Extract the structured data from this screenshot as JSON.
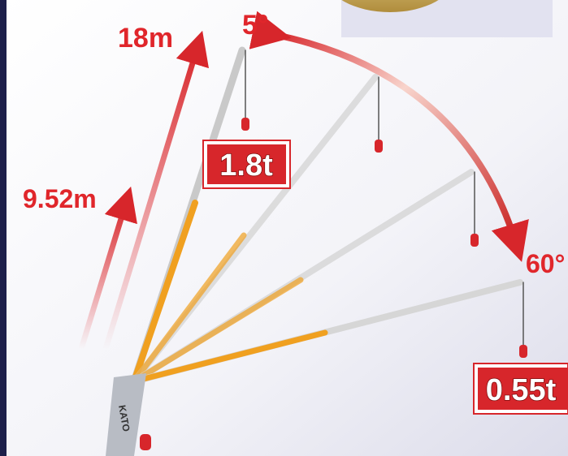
{
  "labels": {
    "boom_length_max": "18m",
    "angle_min": "5°",
    "boom_length_min": "9.52m",
    "load_max": "1.8t",
    "angle_max": "60°",
    "load_min": "0.55t",
    "brand": "KATO"
  }
}
